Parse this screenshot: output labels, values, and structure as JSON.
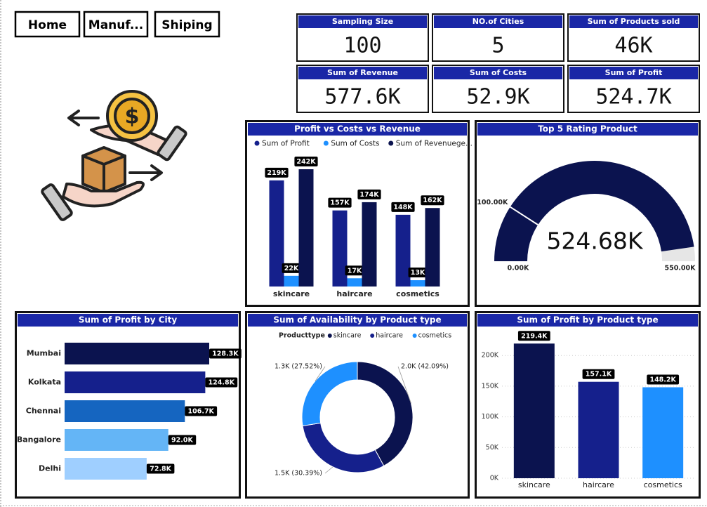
{
  "nav": [
    "Home",
    "Manuf...",
    "Shiping"
  ],
  "kpis": [
    {
      "label": "Sampling Size",
      "value": "100"
    },
    {
      "label": "NO.of Cities",
      "value": "5"
    },
    {
      "label": "Sum of Products sold",
      "value": "46K"
    },
    {
      "label": "Sum of Revenue",
      "value": "577.6K"
    },
    {
      "label": "Sum of Costs",
      "value": "52.9K"
    },
    {
      "label": "Sum of Profit",
      "value": "524.7K"
    }
  ],
  "chart_data": [
    {
      "type": "bar",
      "title": "Profit vs Costs vs Revenue",
      "categories": [
        "skincare",
        "haircare",
        "cosmetics"
      ],
      "series": [
        {
          "name": "Sum of Profit",
          "color": "#15208c",
          "values": [
            219000,
            157000,
            148000
          ],
          "value_labels": [
            "219K",
            "157K",
            "148K"
          ]
        },
        {
          "name": "Sum of Costs",
          "color": "#1e90ff",
          "values": [
            22000,
            17000,
            13000
          ],
          "value_labels": [
            "22K",
            "17K",
            "13K"
          ]
        },
        {
          "name": "Sum of Revenuege...",
          "color": "#0b134f",
          "values": [
            242000,
            174000,
            162000
          ],
          "value_labels": [
            "242K",
            "174K",
            "162K"
          ]
        }
      ]
    },
    {
      "type": "gauge",
      "title": "Top 5 Rating Product",
      "value": 524680,
      "value_label": "524.68K",
      "color": "#0b134f",
      "track_color": "#e6e6e6",
      "ylim": [
        0,
        550000
      ],
      "yticks": [
        {
          "value": 0,
          "label": "0.00K"
        },
        {
          "value": 550000,
          "label": "550.00K"
        }
      ],
      "target": {
        "value": 100000,
        "label": "100.00K"
      }
    },
    {
      "type": "bar",
      "orientation": "horizontal",
      "title": "Sum of Profit by City",
      "categories": [
        "Mumbai",
        "Kolkata",
        "Chennai",
        "Bangalore",
        "Delhi"
      ],
      "values": [
        128300,
        124800,
        106700,
        92000,
        72800
      ],
      "value_labels": [
        "128.3K",
        "124.8K",
        "106.7K",
        "92.0K",
        "72.8K"
      ],
      "colors": [
        "#0b134f",
        "#15208c",
        "#1565c0",
        "#64b5f6",
        "#9fcfff"
      ]
    },
    {
      "type": "donut",
      "title": "Sum of Availability by Product type",
      "legend_title": "Producttype",
      "categories": [
        "skincare",
        "haircare",
        "cosmetics"
      ],
      "values": [
        2037,
        1471,
        1332
      ],
      "value_labels": [
        "2.0K (42.09%)",
        "1.5K (30.39%)",
        "1.3K (27.52%)"
      ],
      "colors": [
        "#0b134f",
        "#15208c",
        "#1e90ff"
      ]
    },
    {
      "type": "bar",
      "title": "Sum of Profit by Product type",
      "categories": [
        "skincare",
        "haircare",
        "cosmetics"
      ],
      "values": [
        219400,
        157100,
        148200
      ],
      "value_labels": [
        "219.4K",
        "157.1K",
        "148.2K"
      ],
      "colors": [
        "#0b134f",
        "#15208c",
        "#1e90ff"
      ],
      "ylim": [
        0,
        230000
      ],
      "yticks": [
        {
          "value": 0,
          "label": "0K"
        },
        {
          "value": 50000,
          "label": "50K"
        },
        {
          "value": 100000,
          "label": "100K"
        },
        {
          "value": 150000,
          "label": "150K"
        },
        {
          "value": 200000,
          "label": "200K"
        }
      ],
      "grid": true
    }
  ]
}
